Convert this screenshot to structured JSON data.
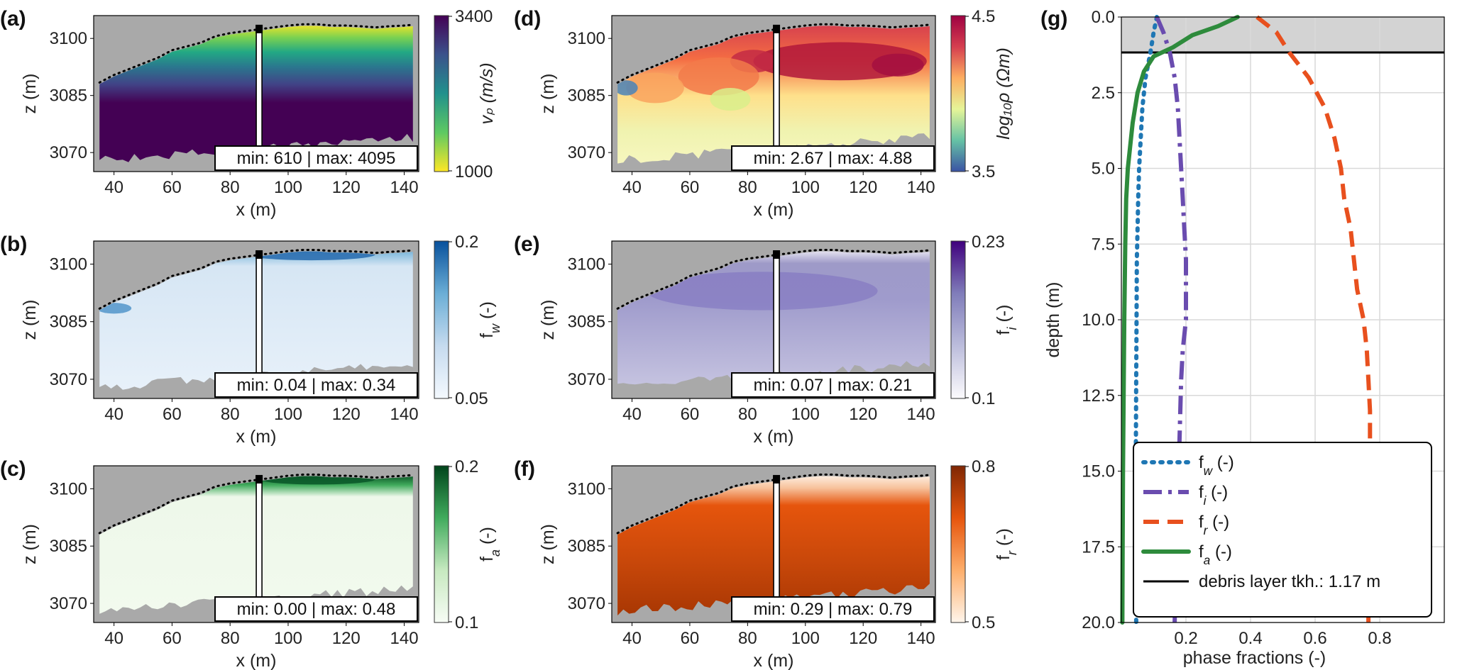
{
  "colors": {
    "background_gray": "#a9a9a9",
    "vp_cmap": [
      "#fde725",
      "#5ec962",
      "#21918c",
      "#3b528b",
      "#440154"
    ],
    "rho_cmap": [
      "#3b53a4",
      "#66c2a5",
      "#e6f598",
      "#fdae61",
      "#d53e4f",
      "#9e0142"
    ],
    "fw_cmap": [
      "#f4f9fe",
      "#c6dbef",
      "#6baed6",
      "#08519c"
    ],
    "fi_cmap": [
      "#fcfbfd",
      "#bcbddc",
      "#807dba",
      "#3f007d"
    ],
    "fa_cmap": [
      "#f7fcf5",
      "#c7e9c0",
      "#41ab5d",
      "#00441b"
    ],
    "fr_cmap": [
      "#fff5eb",
      "#fdae6b",
      "#e6550d",
      "#7f2704"
    ],
    "line_fw": "#1f77b4",
    "line_fi": "#6a4caf",
    "line_fr": "#e8501e",
    "line_fa": "#2e8b3c",
    "debris": "#000000"
  },
  "chart_data": [
    {
      "id": "a",
      "type": "heatmap",
      "letter": "(a)",
      "xlabel": "x (m)",
      "ylabel": "z (m)",
      "xlim": [
        33,
        145
      ],
      "ylim": [
        3065,
        3106
      ],
      "xticks": [
        "40",
        "60",
        "80",
        "100",
        "120",
        "140"
      ],
      "yticks": [
        "3070",
        "3085",
        "3100"
      ],
      "cbar": {
        "label": "vₚ (m/s)",
        "top": "3400",
        "bottom": "1000"
      },
      "stats": "min: 610 | max: 4095"
    },
    {
      "id": "b",
      "type": "heatmap",
      "letter": "(b)",
      "xlabel": "x (m)",
      "ylabel": "z (m)",
      "xlim": [
        33,
        145
      ],
      "ylim": [
        3065,
        3106
      ],
      "xticks": [
        "40",
        "60",
        "80",
        "100",
        "120",
        "140"
      ],
      "yticks": [
        "3070",
        "3085",
        "3100"
      ],
      "cbar": {
        "label": "f_w (-)",
        "top": "0.2",
        "bottom": "0.05"
      },
      "stats": "min: 0.04 | max: 0.34"
    },
    {
      "id": "c",
      "type": "heatmap",
      "letter": "(c)",
      "xlabel": "x (m)",
      "ylabel": "z (m)",
      "xlim": [
        33,
        145
      ],
      "ylim": [
        3065,
        3106
      ],
      "xticks": [
        "40",
        "60",
        "80",
        "100",
        "120",
        "140"
      ],
      "yticks": [
        "3070",
        "3085",
        "3100"
      ],
      "cbar": {
        "label": "f_a (-)",
        "top": "0.2",
        "bottom": "0.1"
      },
      "stats": "min: 0.00 | max: 0.48"
    },
    {
      "id": "d",
      "type": "heatmap",
      "letter": "(d)",
      "xlabel": "x (m)",
      "ylabel": "z (m)",
      "xlim": [
        33,
        145
      ],
      "ylim": [
        3065,
        3106
      ],
      "xticks": [
        "40",
        "60",
        "80",
        "100",
        "120",
        "140"
      ],
      "yticks": [
        "3070",
        "3085",
        "3100"
      ],
      "cbar": {
        "label": "log₁₀ρ (Ωm)",
        "top": "4.5",
        "bottom": "3.5"
      },
      "stats": "min: 2.67 | max: 4.88"
    },
    {
      "id": "e",
      "type": "heatmap",
      "letter": "(e)",
      "xlabel": "x (m)",
      "ylabel": "z (m)",
      "xlim": [
        33,
        145
      ],
      "ylim": [
        3065,
        3106
      ],
      "xticks": [
        "40",
        "60",
        "80",
        "100",
        "120",
        "140"
      ],
      "yticks": [
        "3070",
        "3085",
        "3100"
      ],
      "cbar": {
        "label": "f_i (-)",
        "top": "0.23",
        "bottom": "0.1"
      },
      "stats": "min: 0.07 | max: 0.21"
    },
    {
      "id": "f",
      "type": "heatmap",
      "letter": "(f)",
      "xlabel": "x (m)",
      "ylabel": "z (m)",
      "xlim": [
        33,
        145
      ],
      "ylim": [
        3065,
        3106
      ],
      "xticks": [
        "40",
        "60",
        "80",
        "100",
        "120",
        "140"
      ],
      "yticks": [
        "3070",
        "3085",
        "3100"
      ],
      "cbar": {
        "label": "f_r (-)",
        "top": "0.8",
        "bottom": "0.5"
      },
      "stats": "min: 0.29 | max: 0.79"
    },
    {
      "id": "g",
      "type": "line",
      "letter": "(g)",
      "xlabel": "phase fractions (-)",
      "ylabel": "depth (m)",
      "xlim": [
        0,
        1.0
      ],
      "ylim": [
        20,
        0
      ],
      "xticks": [
        "0.2",
        "0.4",
        "0.6",
        "0.8"
      ],
      "xtick_values": [
        0.2,
        0.4,
        0.6,
        0.8
      ],
      "yticks": [
        "0.0",
        "2.5",
        "5.0",
        "7.5",
        "10.0",
        "12.5",
        "15.0",
        "17.5",
        "20.0"
      ],
      "ytick_values": [
        0,
        2.5,
        5,
        7.5,
        10,
        12.5,
        15,
        17.5,
        20
      ],
      "debris_depth": 1.17,
      "series": [
        {
          "name": "f_w (-)",
          "style": "dotted",
          "depth": [
            0,
            0.5,
            1.17,
            2,
            3,
            4,
            5,
            6,
            7,
            8,
            10,
            12,
            14,
            16,
            18,
            20
          ],
          "values": [
            0.11,
            0.1,
            0.09,
            0.075,
            0.065,
            0.06,
            0.055,
            0.052,
            0.05,
            0.048,
            0.047,
            0.046,
            0.045,
            0.045,
            0.046,
            0.046
          ]
        },
        {
          "name": "f_i (-)",
          "style": "dashdot",
          "depth": [
            0,
            0.5,
            1.17,
            2,
            3,
            4,
            5,
            6,
            7,
            8,
            9,
            10,
            11,
            12,
            14,
            16,
            18,
            20
          ],
          "values": [
            0.11,
            0.13,
            0.15,
            0.165,
            0.175,
            0.18,
            0.185,
            0.19,
            0.195,
            0.2,
            0.2,
            0.2,
            0.19,
            0.185,
            0.18,
            0.175,
            0.17,
            0.165
          ]
        },
        {
          "name": "f_r (-)",
          "style": "dashed",
          "depth": [
            0,
            0.5,
            1.17,
            2,
            3,
            4,
            5,
            6,
            7,
            8,
            9,
            10,
            11,
            12,
            13,
            14,
            16,
            18,
            20
          ],
          "values": [
            0.42,
            0.48,
            0.52,
            0.58,
            0.63,
            0.66,
            0.68,
            0.69,
            0.71,
            0.72,
            0.73,
            0.75,
            0.76,
            0.765,
            0.77,
            0.77,
            0.765,
            0.765,
            0.765
          ]
        },
        {
          "name": "f_a (-)",
          "style": "solid",
          "depth": [
            0,
            0.3,
            0.6,
            1.0,
            1.3,
            1.8,
            2.5,
            3.5,
            5,
            6,
            7.5,
            10,
            12.5,
            15,
            17.5,
            20
          ],
          "values": [
            0.36,
            0.3,
            0.22,
            0.16,
            0.1,
            0.07,
            0.05,
            0.035,
            0.02,
            0.015,
            0.012,
            0.009,
            0.007,
            0.005,
            0.004,
            0.003
          ]
        }
      ],
      "legend": {
        "items": [
          "f_w (-)",
          "f_i (-)",
          "f_r (-)",
          "f_a (-)"
        ],
        "debris_label": "debris layer tkh.: 1.17 m"
      }
    }
  ]
}
